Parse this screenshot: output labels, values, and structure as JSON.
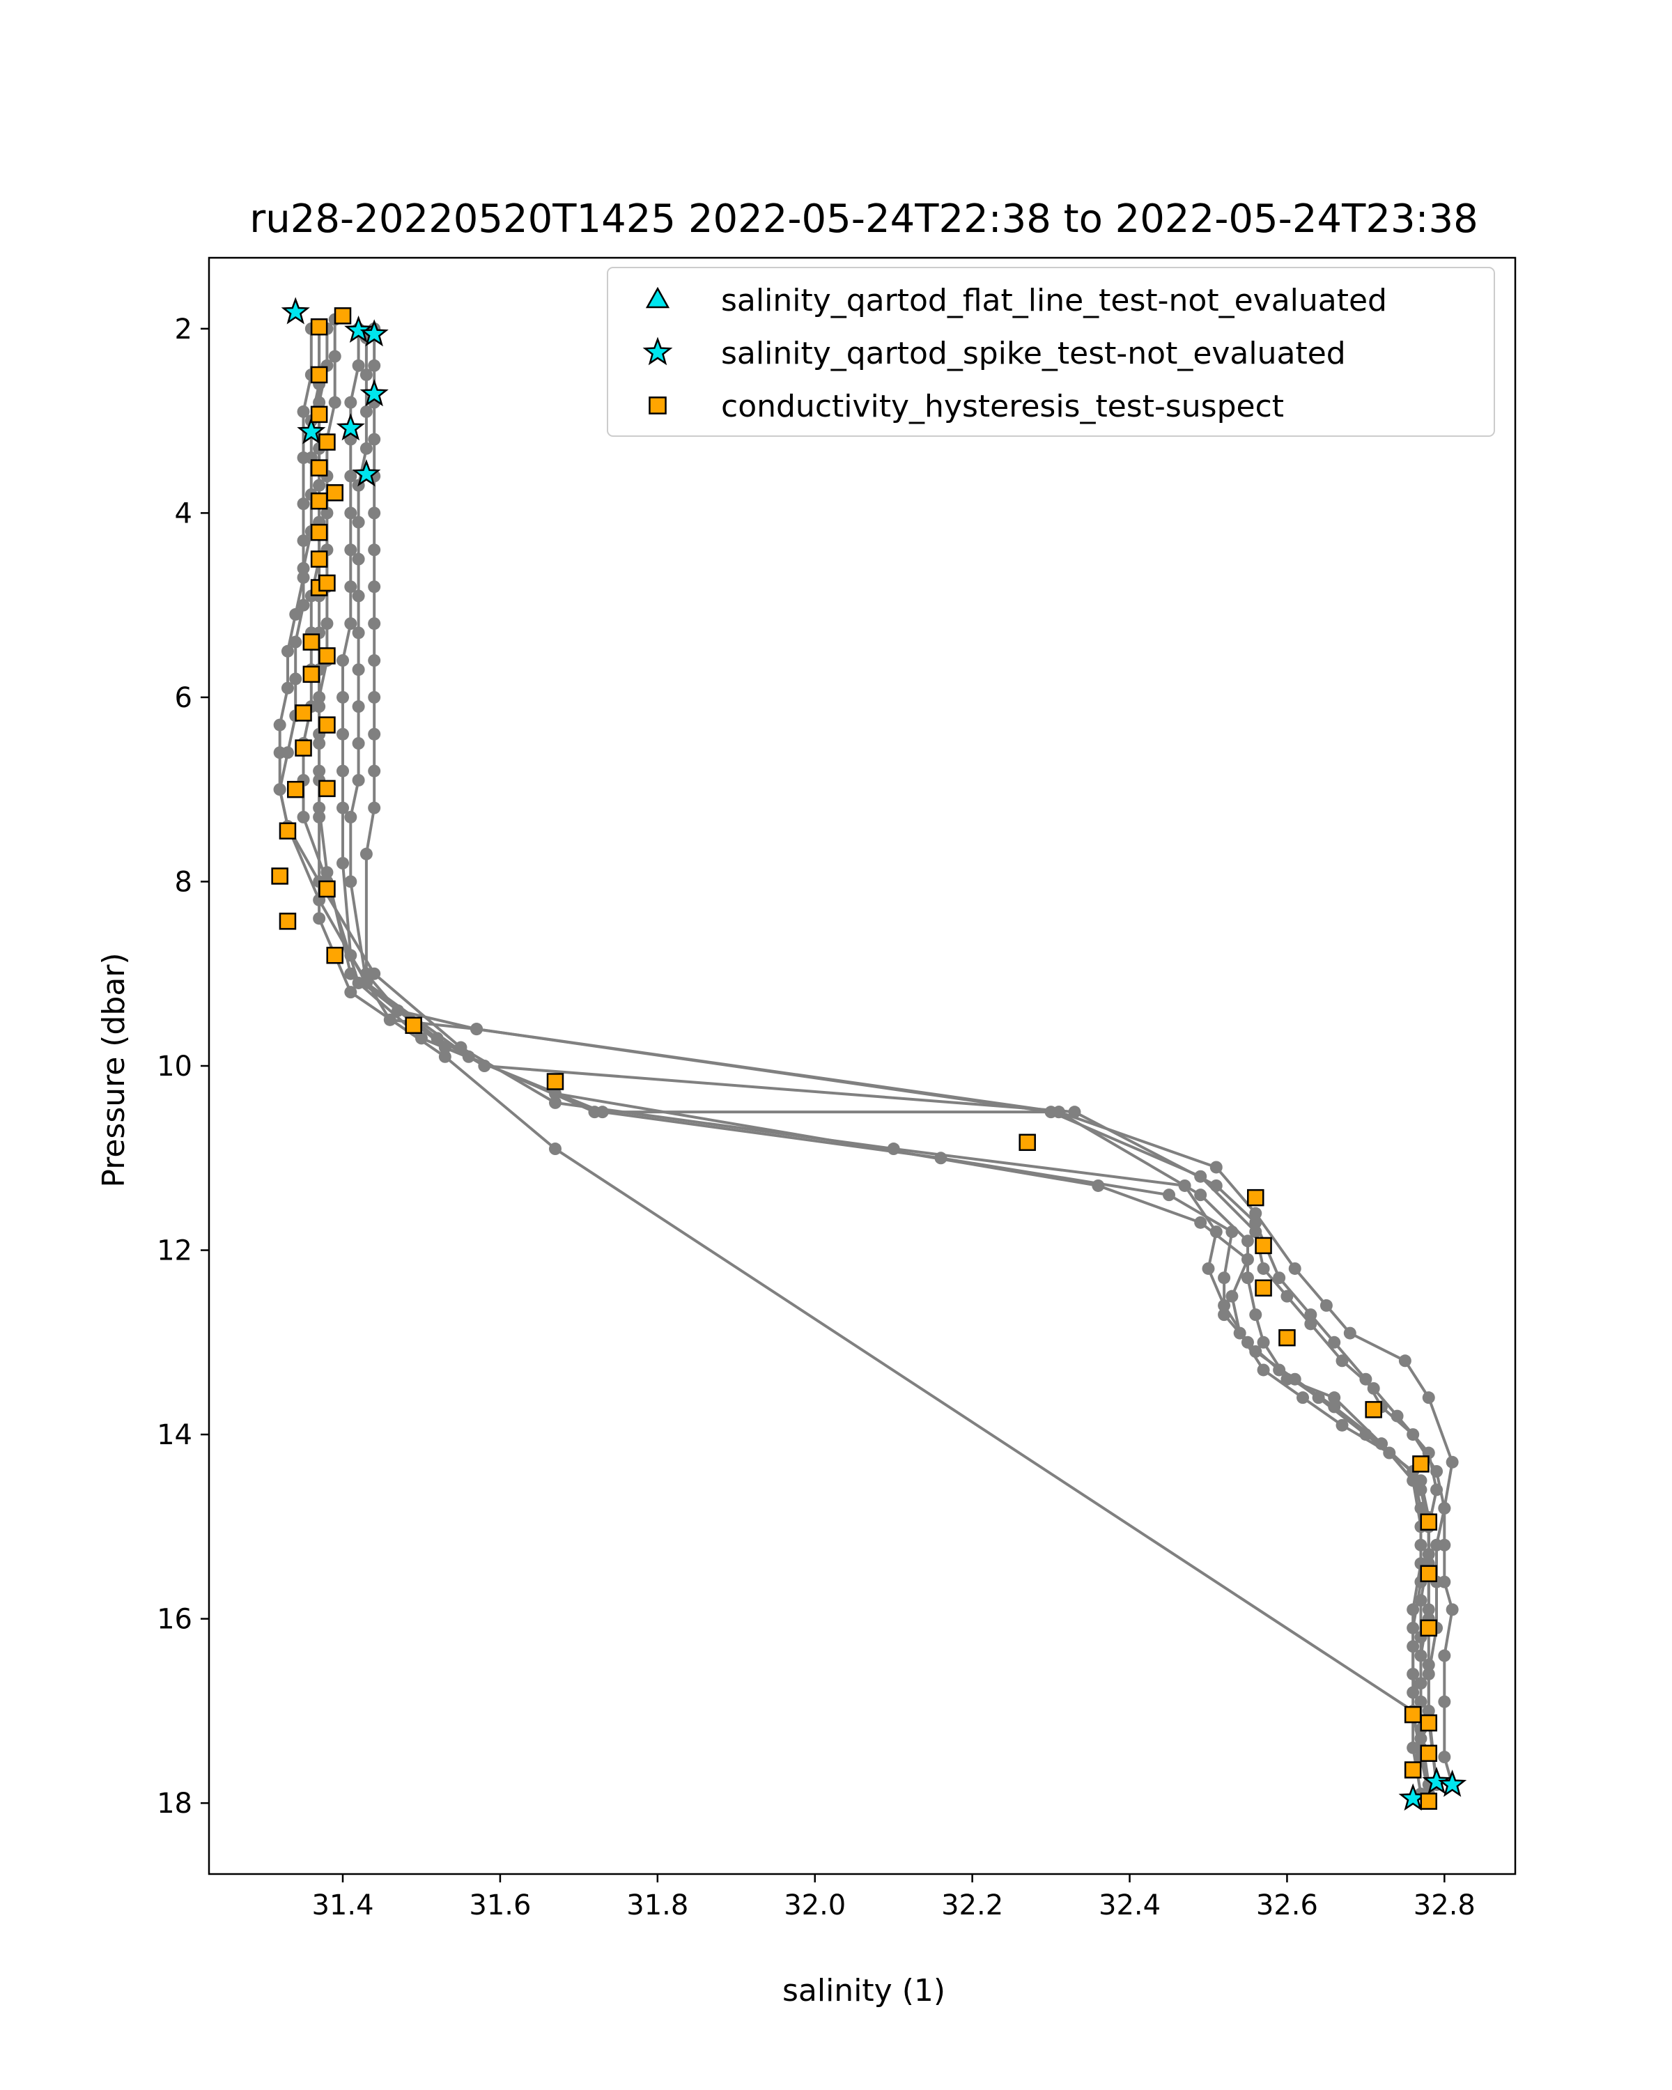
{
  "chart_data": {
    "type": "scatter",
    "title": "ru28-20220520T1425 2022-05-24T22:38 to 2022-05-24T23:38",
    "xlabel": "salinity (1)",
    "ylabel": "Pressure (dbar)",
    "xlim": [
      31.23,
      32.89
    ],
    "ylim": [
      18.77,
      1.23
    ],
    "y_inverted": true,
    "grid": false,
    "legend_position": "top-right",
    "x_ticks": [
      {
        "value": 31.4,
        "label": "31.4"
      },
      {
        "value": 31.6,
        "label": "31.6"
      },
      {
        "value": 31.8,
        "label": "31.8"
      },
      {
        "value": 32.0,
        "label": "32.0"
      },
      {
        "value": 32.2,
        "label": "32.2"
      },
      {
        "value": 32.4,
        "label": "32.4"
      },
      {
        "value": 32.6,
        "label": "32.6"
      },
      {
        "value": 32.8,
        "label": "32.8"
      }
    ],
    "y_ticks": [
      {
        "value": 2,
        "label": "2"
      },
      {
        "value": 4,
        "label": "4"
      },
      {
        "value": 6,
        "label": "6"
      },
      {
        "value": 8,
        "label": "8"
      },
      {
        "value": 10,
        "label": "10"
      },
      {
        "value": 12,
        "label": "12"
      },
      {
        "value": 14,
        "label": "14"
      },
      {
        "value": 16,
        "label": "16"
      },
      {
        "value": 18,
        "label": "18"
      }
    ],
    "colors": {
      "profile": "#808080",
      "flat_line": "#00e5ee",
      "spike": "#00e5ee",
      "hysteresis": "#ffa500",
      "marker_edge": "#000000"
    },
    "profiles": [
      {
        "x": [
          31.36,
          31.36,
          31.35,
          31.35,
          31.35,
          31.35,
          31.35,
          31.34,
          31.33,
          31.33,
          31.32,
          31.32,
          31.32,
          31.33,
          31.37,
          31.43,
          31.56,
          31.72,
          32.31,
          32.49,
          32.55,
          32.55,
          32.56,
          32.57,
          32.6,
          32.66,
          32.72,
          32.76,
          32.77,
          32.77,
          32.76,
          32.76,
          32.76,
          32.76,
          32.77
        ],
        "y": [
          2.0,
          2.5,
          2.9,
          3.4,
          3.9,
          4.3,
          4.7,
          5.1,
          5.5,
          5.9,
          6.3,
          6.6,
          7.0,
          7.4,
          8.2,
          9.1,
          9.9,
          10.5,
          10.5,
          11.4,
          11.9,
          12.3,
          12.7,
          13.0,
          13.4,
          13.6,
          14.1,
          14.5,
          15.0,
          15.4,
          15.9,
          16.3,
          16.8,
          17.4,
          17.9
        ]
      },
      {
        "x": [
          31.37,
          31.37,
          31.36,
          31.36,
          31.36,
          31.36,
          31.35,
          31.35,
          31.34,
          31.34,
          31.34,
          31.33,
          31.32,
          31.33,
          31.37,
          31.44,
          31.55,
          31.67,
          32.1,
          32.47,
          32.51,
          32.5,
          32.52,
          32.55,
          32.59,
          32.64,
          32.7,
          32.76,
          32.77,
          32.77,
          32.77,
          32.76,
          32.76,
          32.77,
          32.78
        ],
        "y": [
          2.0,
          2.6,
          3.0,
          3.4,
          3.8,
          4.2,
          4.6,
          5.0,
          5.4,
          5.8,
          6.2,
          6.6,
          7.0,
          7.4,
          8.0,
          9.0,
          9.8,
          10.4,
          10.9,
          11.3,
          11.8,
          12.2,
          12.6,
          13.0,
          13.3,
          13.6,
          14.0,
          14.4,
          14.8,
          15.2,
          15.6,
          16.1,
          16.6,
          17.2,
          17.8
        ]
      },
      {
        "x": [
          31.38,
          31.38,
          31.37,
          31.37,
          31.37,
          31.37,
          31.37,
          31.36,
          31.36,
          31.36,
          31.36,
          31.35,
          31.35,
          31.35,
          31.38,
          31.42,
          31.5,
          31.73,
          32.16,
          32.45,
          32.53,
          32.52,
          32.52,
          32.56,
          32.61,
          32.66,
          32.72,
          32.77,
          32.78,
          32.78,
          32.77,
          32.77,
          32.77,
          32.77,
          32.78
        ],
        "y": [
          2.0,
          2.4,
          2.8,
          3.3,
          3.7,
          4.1,
          4.5,
          4.9,
          5.3,
          5.7,
          6.1,
          6.5,
          6.9,
          7.3,
          8.0,
          9.1,
          9.7,
          10.5,
          11.0,
          11.4,
          11.8,
          12.3,
          12.7,
          13.1,
          13.4,
          13.7,
          14.1,
          14.5,
          14.9,
          15.3,
          15.8,
          16.2,
          16.7,
          17.3,
          17.9
        ]
      },
      {
        "x": [
          31.39,
          31.39,
          31.39,
          31.38,
          31.38,
          31.38,
          31.38,
          31.38,
          31.38,
          31.38,
          31.37,
          31.37,
          31.37,
          31.37,
          31.38,
          31.41,
          31.53,
          31.67,
          32.36,
          32.49,
          32.55,
          32.53,
          32.54,
          32.57,
          32.62,
          32.67,
          32.73,
          32.77,
          32.78,
          32.78,
          32.78,
          32.77,
          32.77,
          32.77,
          32.78
        ],
        "y": [
          1.9,
          2.3,
          2.8,
          3.2,
          3.6,
          4.0,
          4.4,
          4.8,
          5.2,
          5.6,
          6.0,
          6.4,
          6.8,
          7.2,
          7.9,
          9.0,
          9.8,
          10.3,
          11.3,
          11.7,
          12.1,
          12.5,
          12.9,
          13.3,
          13.6,
          13.9,
          14.2,
          14.6,
          15.0,
          15.4,
          15.9,
          16.4,
          16.9,
          17.4,
          17.9
        ]
      },
      {
        "x": [
          31.42,
          31.42,
          31.41,
          31.41,
          31.41,
          31.41,
          31.41,
          31.41,
          31.41,
          31.4,
          31.4,
          31.4,
          31.4,
          31.4,
          31.4,
          31.41,
          31.46,
          31.57,
          32.3,
          32.49,
          32.56,
          32.57,
          32.6,
          32.63,
          32.67,
          32.71,
          32.74,
          32.78,
          32.79,
          32.78,
          32.78,
          32.78,
          32.78,
          32.78,
          32.79
        ],
        "y": [
          2.0,
          2.4,
          2.8,
          3.2,
          3.6,
          4.0,
          4.4,
          4.8,
          5.2,
          5.6,
          6.0,
          6.4,
          6.8,
          7.2,
          7.8,
          8.8,
          9.5,
          9.6,
          10.5,
          11.2,
          11.8,
          12.2,
          12.5,
          12.8,
          13.2,
          13.5,
          13.8,
          14.2,
          14.6,
          15.0,
          15.5,
          16.0,
          16.5,
          17.0,
          17.8
        ]
      },
      {
        "x": [
          31.43,
          31.43,
          31.43,
          31.43,
          31.42,
          31.42,
          31.42,
          31.42,
          31.42,
          31.42,
          31.42,
          31.42,
          31.42,
          31.41,
          31.41,
          31.43,
          31.52,
          31.58,
          32.33,
          32.51,
          32.56,
          32.59,
          32.63,
          32.66,
          32.7,
          32.72,
          32.76,
          32.79,
          32.8,
          32.79,
          32.79,
          32.79,
          32.78,
          32.78,
          32.79
        ],
        "y": [
          2.1,
          2.5,
          2.9,
          3.3,
          3.7,
          4.1,
          4.5,
          4.9,
          5.3,
          5.7,
          6.1,
          6.5,
          6.9,
          7.3,
          8.0,
          9.1,
          9.7,
          10.0,
          10.5,
          11.3,
          11.7,
          12.3,
          12.7,
          13.0,
          13.4,
          13.7,
          14.0,
          14.4,
          14.8,
          15.2,
          15.6,
          16.1,
          16.6,
          17.1,
          17.8
        ]
      },
      {
        "x": [
          31.44,
          31.44,
          31.44,
          31.44,
          31.44,
          31.44,
          31.44,
          31.44,
          31.44,
          31.44,
          31.44,
          31.44,
          31.44,
          31.44,
          31.43,
          31.43,
          31.47,
          31.57,
          32.31,
          32.51,
          32.56,
          32.61,
          32.65,
          32.68,
          32.75,
          32.78,
          32.81,
          32.8,
          32.8,
          32.8,
          32.81,
          32.8,
          32.8,
          32.8,
          32.81
        ],
        "y": [
          2.0,
          2.4,
          2.8,
          3.2,
          3.6,
          4.0,
          4.4,
          4.8,
          5.2,
          5.6,
          6.0,
          6.4,
          6.8,
          7.2,
          7.7,
          9.0,
          9.4,
          9.6,
          10.5,
          11.1,
          11.6,
          12.2,
          12.6,
          12.9,
          13.2,
          13.6,
          14.3,
          14.8,
          15.2,
          15.6,
          15.9,
          16.4,
          16.9,
          17.5,
          17.8
        ]
      },
      {
        "x": [
          31.37,
          31.37,
          31.37,
          31.37,
          31.37,
          31.37,
          31.37,
          31.37,
          31.37,
          31.37,
          31.37,
          31.37,
          31.37,
          31.37,
          31.37,
          31.41,
          31.53,
          31.67,
          32.76,
          32.77,
          32.78
        ],
        "y": [
          2.0,
          2.5,
          2.9,
          3.3,
          3.7,
          4.1,
          4.5,
          4.9,
          5.3,
          5.7,
          6.1,
          6.5,
          6.9,
          7.3,
          8.4,
          9.2,
          9.9,
          10.9,
          17.0,
          17.5,
          17.9
        ]
      }
    ],
    "series": [
      {
        "name": "salinity_qartod_flat_line_test-not_evaluated",
        "marker": "triangle",
        "x": [],
        "y": []
      },
      {
        "name": "salinity_qartod_spike_test-not_evaluated",
        "marker": "star",
        "x": [
          31.34,
          31.42,
          31.44,
          31.44,
          31.36,
          31.41,
          31.43,
          32.76,
          32.79,
          32.81
        ],
        "y": [
          1.82,
          2.02,
          2.06,
          2.71,
          3.12,
          3.08,
          3.58,
          17.95,
          17.77,
          17.8
        ]
      },
      {
        "name": "conductivity_hysteresis_test-suspect",
        "marker": "square",
        "x": [
          31.37,
          31.4,
          31.37,
          31.37,
          31.38,
          31.37,
          31.39,
          31.37,
          31.37,
          31.37,
          31.37,
          31.38,
          31.36,
          31.38,
          31.36,
          31.38,
          31.35,
          31.35,
          31.34,
          31.38,
          31.33,
          31.32,
          31.38,
          31.33,
          31.39,
          31.49,
          31.67,
          32.27,
          32.56,
          32.57,
          32.57,
          32.6,
          32.71,
          32.77,
          32.78,
          32.78,
          32.78,
          32.76,
          32.78,
          32.78,
          32.76,
          32.78
        ],
        "y": [
          1.98,
          1.86,
          2.5,
          2.93,
          3.23,
          3.51,
          3.78,
          3.87,
          4.21,
          4.5,
          4.81,
          4.76,
          5.4,
          5.55,
          5.75,
          6.3,
          6.17,
          6.55,
          7.0,
          6.99,
          7.45,
          7.94,
          8.08,
          8.43,
          8.8,
          9.56,
          10.17,
          10.83,
          11.43,
          11.95,
          12.41,
          12.95,
          13.73,
          14.32,
          14.95,
          15.51,
          16.1,
          17.04,
          17.13,
          17.46,
          17.64,
          17.98
        ]
      }
    ]
  }
}
